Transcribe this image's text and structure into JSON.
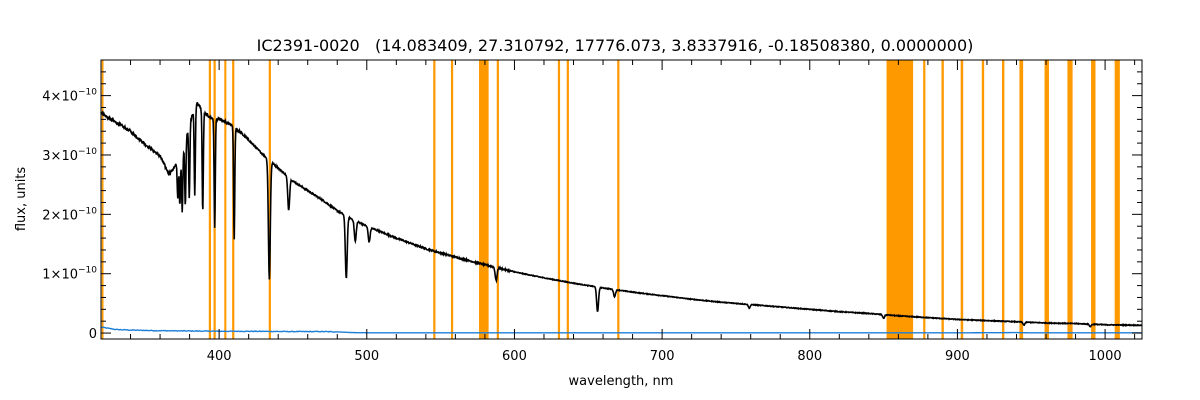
{
  "chart_data": {
    "type": "line",
    "title": "IC2391-0020   (14.083409, 27.310792, 17776.073, 3.8337916, -0.18508380, 0.0000000)",
    "xlabel": "wavelength, nm",
    "ylabel": "flux, units",
    "xlim": [
      320,
      1025
    ],
    "ylim": [
      -1e-11,
      4.6e-10
    ],
    "x_ticks": [
      400,
      500,
      600,
      700,
      800,
      900,
      1000
    ],
    "x_tick_labels": [
      "400",
      "500",
      "600",
      "700",
      "800",
      "900",
      "1000"
    ],
    "y_ticks": [
      0,
      1e-10,
      2e-10,
      3e-10,
      4e-10
    ],
    "y_tick_labels": [
      {
        "mantissa": "0",
        "exp": ""
      },
      {
        "mantissa": "1×10",
        "exp": "−10"
      },
      {
        "mantissa": "2×10",
        "exp": "−10"
      },
      {
        "mantissa": "3×10",
        "exp": "−10"
      },
      {
        "mantissa": "4×10",
        "exp": "−10"
      }
    ],
    "grid": false,
    "colors": {
      "flux": "#000000",
      "error": "#1e7fd8",
      "mask": "#ff9900"
    },
    "masked_regions_nm": [
      [
        320.5,
        321.7
      ],
      [
        393.0,
        394.5
      ],
      [
        396.2,
        397.7
      ],
      [
        403.5,
        404.9
      ],
      [
        408.8,
        410.3
      ],
      [
        433.6,
        435.1
      ],
      [
        545.0,
        546.5
      ],
      [
        557.0,
        558.5
      ],
      [
        576.0,
        582.5
      ],
      [
        588.0,
        589.5
      ],
      [
        629.4,
        630.9
      ],
      [
        635.4,
        636.9
      ],
      [
        669.6,
        671.1
      ],
      [
        852.0,
        870.0
      ],
      [
        876.8,
        878.3
      ],
      [
        889.2,
        890.8
      ],
      [
        902.2,
        903.9
      ],
      [
        916.5,
        918.1
      ],
      [
        930.2,
        931.8
      ],
      [
        942.0,
        944.5
      ],
      [
        959.0,
        962.0
      ],
      [
        974.5,
        978.0
      ],
      [
        990.5,
        993.5
      ],
      [
        1006.5,
        1010.0
      ]
    ],
    "series": [
      {
        "role": "flux",
        "x": [
          320,
          325,
          330,
          340,
          350,
          360,
          366,
          370,
          375,
          380,
          385,
          390,
          395,
          400,
          405,
          410,
          420,
          430,
          440,
          450,
          460,
          470,
          480,
          490,
          500,
          520,
          540,
          560,
          580,
          600,
          620,
          640,
          660,
          680,
          700,
          720,
          740,
          760,
          780,
          800,
          820,
          840,
          860,
          880,
          900,
          920,
          940,
          960,
          980,
          1000,
          1025
        ],
        "y": [
          3.72e-10,
          3.62e-10,
          3.55e-10,
          3.4e-10,
          3.18e-10,
          2.98e-10,
          2.68e-10,
          2.8e-10,
          3e-10,
          3.55e-10,
          3.88e-10,
          3.7e-10,
          3.62e-10,
          3.6e-10,
          3.54e-10,
          3.48e-10,
          3.25e-10,
          3e-10,
          2.78e-10,
          2.56e-10,
          2.4e-10,
          2.24e-10,
          2.06e-10,
          1.92e-10,
          1.8e-10,
          1.6e-10,
          1.42e-10,
          1.28e-10,
          1.15e-10,
          1.03e-10,
          9.3e-11,
          8.4e-11,
          7.6e-11,
          6.9e-11,
          6.3e-11,
          5.7e-11,
          5.2e-11,
          4.8e-11,
          4.4e-11,
          4e-11,
          3.6e-11,
          3.3e-11,
          2.9e-11,
          2.6e-11,
          2.3e-11,
          2.1e-11,
          1.9e-11,
          1.7e-11,
          1.6e-11,
          1.4e-11,
          1.3e-11
        ]
      },
      {
        "role": "flux_absorption_lines",
        "lines": [
          {
            "x": 372.0,
            "depth": 6e-11
          },
          {
            "x": 373.4,
            "depth": 8e-11
          },
          {
            "x": 375.0,
            "depth": 9.5e-11
          },
          {
            "x": 377.1,
            "depth": 1.1e-10
          },
          {
            "x": 379.8,
            "depth": 1.25e-10
          },
          {
            "x": 383.5,
            "depth": 1.45e-10
          },
          {
            "x": 388.9,
            "depth": 1.7e-10
          },
          {
            "x": 397.0,
            "depth": 1.85e-10
          },
          {
            "x": 410.2,
            "depth": 1.9e-10
          },
          {
            "x": 434.0,
            "depth": 2e-10
          },
          {
            "x": 447.1,
            "depth": 5.5e-11
          },
          {
            "x": 486.1,
            "depth": 1.05e-10
          },
          {
            "x": 492.2,
            "depth": 3.5e-11
          },
          {
            "x": 501.6,
            "depth": 2.5e-11
          },
          {
            "x": 587.6,
            "depth": 2.2e-11
          },
          {
            "x": 656.3,
            "depth": 4.2e-11
          },
          {
            "x": 667.8,
            "depth": 1.2e-11
          },
          {
            "x": 759.0,
            "depth": 6e-12
          },
          {
            "x": 850.0,
            "depth": 6e-12
          },
          {
            "x": 945.0,
            "depth": 5e-12
          },
          {
            "x": 990.0,
            "depth": 4e-12
          }
        ]
      },
      {
        "role": "error",
        "x": [
          320,
          330,
          340,
          360,
          380,
          400,
          420,
          450,
          470,
          480,
          490,
          500,
          600,
          700,
          800,
          900,
          940,
          950,
          1000,
          1025
        ],
        "y": [
          1e-11,
          6e-12,
          5e-12,
          4e-12,
          3.5e-12,
          3e-12,
          3e-12,
          2.5e-12,
          2.5e-12,
          2e-12,
          8e-13,
          5e-13,
          4e-13,
          4e-13,
          4e-13,
          4e-13,
          8e-13,
          4e-13,
          4e-13,
          4e-13
        ]
      }
    ]
  }
}
